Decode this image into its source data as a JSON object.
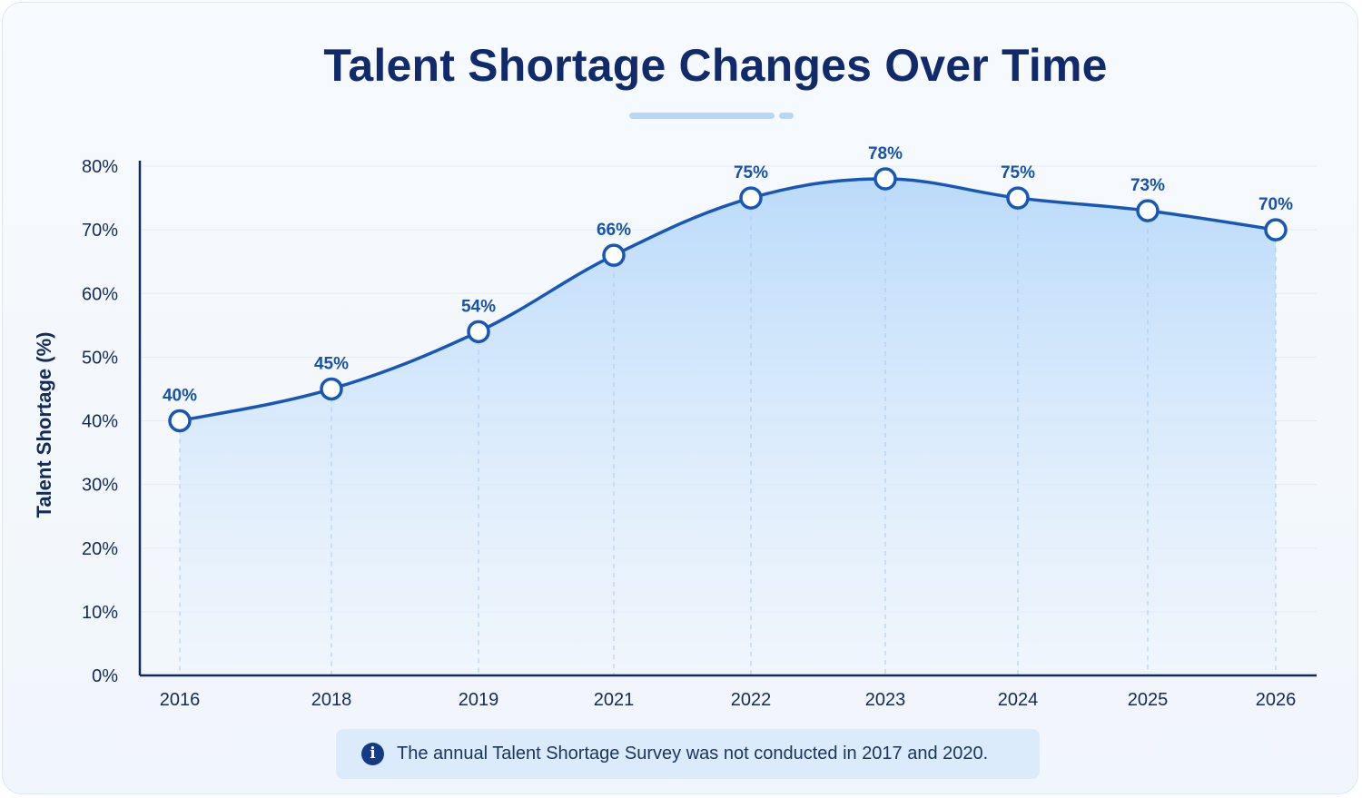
{
  "title": "Talent Shortage Changes Over Time",
  "note": {
    "icon": "info-icon",
    "text": "The annual Talent Shortage Survey was not conducted in 2017 and 2020."
  },
  "colors": {
    "line": "#1757b8",
    "title": "#102a6b",
    "axis": "#122a5c",
    "label": "#1652b0",
    "area_top": "#b8d9fa",
    "area_bottom": "#eef5fd"
  },
  "chart_data": {
    "type": "area",
    "x": [
      "2016",
      "2018",
      "2019",
      "2021",
      "2022",
      "2023",
      "2024",
      "2025",
      "2026"
    ],
    "values": [
      40,
      45,
      54,
      66,
      75,
      78,
      75,
      73,
      70
    ],
    "data_labels": [
      "40%",
      "45%",
      "54%",
      "66%",
      "75%",
      "78%",
      "75%",
      "73%",
      "70%"
    ],
    "ylabel": "Talent Shortage (%)",
    "xlabel": "",
    "ylim": [
      0,
      80
    ],
    "yticks": [
      0,
      10,
      20,
      30,
      40,
      50,
      60,
      70,
      80
    ],
    "ytick_labels": [
      "0%",
      "10%",
      "20%",
      "30%",
      "40%",
      "50%",
      "60%",
      "70%",
      "80%"
    ],
    "grid": true,
    "markers": "hollow-circle"
  }
}
